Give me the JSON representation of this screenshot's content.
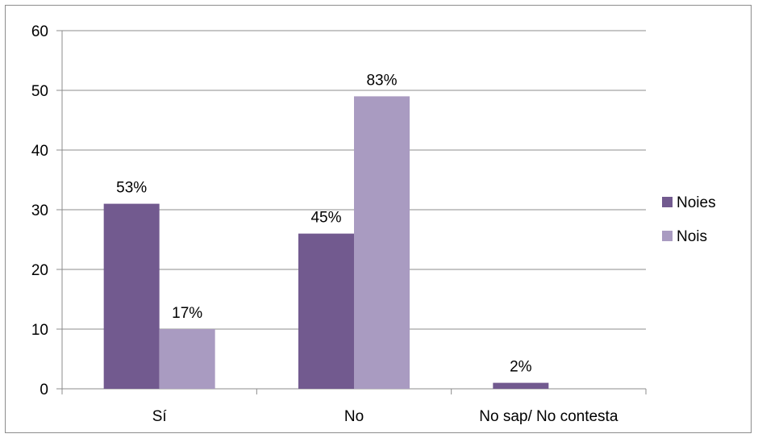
{
  "chart_data": {
    "type": "bar",
    "title": "",
    "xlabel": "",
    "ylabel": "",
    "categories": [
      "Sí",
      "No",
      "No sap/ No contesta"
    ],
    "series": [
      {
        "name": "Noies",
        "color": "#725A8F",
        "values": [
          31,
          26,
          1
        ],
        "labels": [
          "53%",
          "45%",
          "2%"
        ]
      },
      {
        "name": "Nois",
        "color": "#A99BC1",
        "values": [
          10,
          49,
          0
        ],
        "labels": [
          "17%",
          "83%",
          ""
        ]
      }
    ],
    "ylim": [
      0,
      60
    ],
    "yticks": [
      0,
      10,
      20,
      30,
      40,
      50,
      60
    ],
    "grid": true,
    "legend_position": "right"
  }
}
